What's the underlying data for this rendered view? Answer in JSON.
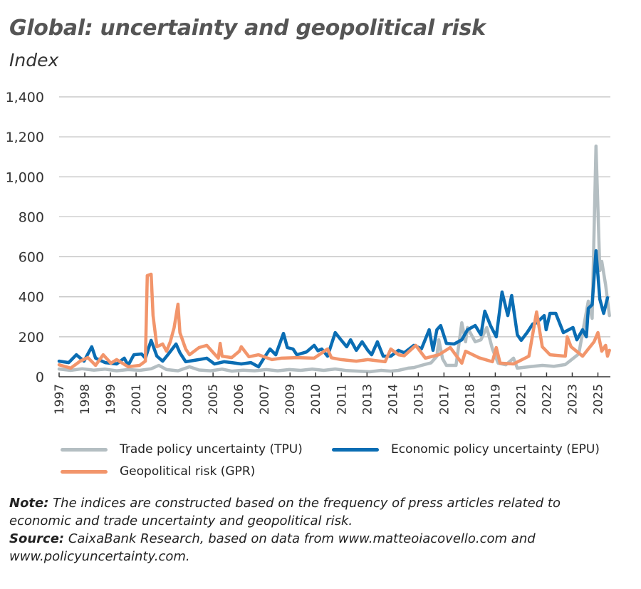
{
  "chart_data": {
    "type": "line",
    "title": "Global: uncertainty and geopolitical risk",
    "subtitle": "Index",
    "xlabel": "",
    "ylabel": "Index",
    "ylim": [
      0,
      1400
    ],
    "x_range": [
      1997.0,
      2025.75
    ],
    "y_ticks": [
      0,
      200,
      400,
      600,
      800,
      1000,
      1200,
      1400
    ],
    "y_tick_labels": [
      "0",
      "200",
      "400",
      "600",
      "800",
      "1,000",
      "1,200",
      "1,400"
    ],
    "x_tick_labels": [
      "1997",
      "1998",
      "1999",
      "2001",
      "2002",
      "2003",
      "2005",
      "2006",
      "2007",
      "2009",
      "2010",
      "2011",
      "2013",
      "2014",
      "2015",
      "2017",
      "2018",
      "2019",
      "2021",
      "2022",
      "2023",
      "2025"
    ],
    "x_tick_first": 1997.0,
    "x_tick_last": 2025.1,
    "grid": true,
    "legend_placement": "bottom",
    "series": [
      {
        "name": "Trade policy uncertainty (TPU)",
        "color": "#b4bec2",
        "points": [
          [
            1997.0,
            39
          ],
          [
            1997.6,
            32
          ],
          [
            1998.2,
            40
          ],
          [
            1998.8,
            33
          ],
          [
            1999.4,
            38
          ],
          [
            2000.0,
            30
          ],
          [
            2000.6,
            36
          ],
          [
            2001.2,
            32
          ],
          [
            2001.8,
            40
          ],
          [
            2002.2,
            57
          ],
          [
            2002.6,
            36
          ],
          [
            2003.2,
            30
          ],
          [
            2003.8,
            50
          ],
          [
            2004.3,
            34
          ],
          [
            2004.9,
            30
          ],
          [
            2005.5,
            38
          ],
          [
            2006.0,
            28
          ],
          [
            2006.6,
            33
          ],
          [
            2007.2,
            30
          ],
          [
            2007.8,
            36
          ],
          [
            2008.4,
            30
          ],
          [
            2009.0,
            36
          ],
          [
            2009.6,
            32
          ],
          [
            2010.2,
            38
          ],
          [
            2010.8,
            32
          ],
          [
            2011.4,
            39
          ],
          [
            2012.0,
            31
          ],
          [
            2012.6,
            28
          ],
          [
            2013.2,
            25
          ],
          [
            2013.8,
            32
          ],
          [
            2014.3,
            28
          ],
          [
            2014.7,
            32
          ],
          [
            2015.2,
            43
          ],
          [
            2015.5,
            46
          ],
          [
            2015.9,
            57
          ],
          [
            2016.4,
            70
          ],
          [
            2016.7,
            103
          ],
          [
            2016.8,
            185
          ],
          [
            2017.0,
            90
          ],
          [
            2017.2,
            57
          ],
          [
            2017.7,
            57
          ],
          [
            2018.0,
            270
          ],
          [
            2018.2,
            175
          ],
          [
            2018.3,
            246
          ],
          [
            2018.7,
            175
          ],
          [
            2019.0,
            185
          ],
          [
            2019.3,
            246
          ],
          [
            2019.6,
            139
          ],
          [
            2019.9,
            68
          ],
          [
            2020.3,
            60
          ],
          [
            2020.7,
            93
          ],
          [
            2020.9,
            43
          ],
          [
            2021.5,
            50
          ],
          [
            2022.2,
            57
          ],
          [
            2022.8,
            52
          ],
          [
            2023.4,
            61
          ],
          [
            2024.1,
            114
          ],
          [
            2024.6,
            378
          ],
          [
            2024.8,
            292
          ],
          [
            2025.0,
            1154
          ],
          [
            2025.2,
            531
          ],
          [
            2025.3,
            577
          ],
          [
            2025.5,
            460
          ],
          [
            2025.7,
            306
          ]
        ]
      },
      {
        "name": "Economic policy uncertainty (EPU)",
        "color": "#0a6db3",
        "points": [
          [
            1997.0,
            78
          ],
          [
            1997.5,
            71
          ],
          [
            1997.9,
            110
          ],
          [
            1998.3,
            78
          ],
          [
            1998.7,
            150
          ],
          [
            1998.9,
            93
          ],
          [
            1999.4,
            71
          ],
          [
            2000.0,
            64
          ],
          [
            2000.4,
            93
          ],
          [
            2000.6,
            57
          ],
          [
            2000.9,
            110
          ],
          [
            2001.3,
            114
          ],
          [
            2001.5,
            93
          ],
          [
            2001.8,
            182
          ],
          [
            2002.1,
            103
          ],
          [
            2002.4,
            78
          ],
          [
            2002.7,
            114
          ],
          [
            2003.1,
            164
          ],
          [
            2003.3,
            120
          ],
          [
            2003.6,
            75
          ],
          [
            2004.3,
            86
          ],
          [
            2004.7,
            93
          ],
          [
            2005.1,
            64
          ],
          [
            2005.6,
            75
          ],
          [
            2006.0,
            71
          ],
          [
            2006.5,
            64
          ],
          [
            2007.0,
            71
          ],
          [
            2007.4,
            50
          ],
          [
            2007.7,
            96
          ],
          [
            2008.0,
            139
          ],
          [
            2008.3,
            110
          ],
          [
            2008.7,
            217
          ],
          [
            2008.9,
            146
          ],
          [
            2009.2,
            139
          ],
          [
            2009.4,
            110
          ],
          [
            2009.9,
            124
          ],
          [
            2010.3,
            157
          ],
          [
            2010.5,
            130
          ],
          [
            2010.7,
            139
          ],
          [
            2011.0,
            103
          ],
          [
            2011.4,
            221
          ],
          [
            2011.7,
            185
          ],
          [
            2012.0,
            150
          ],
          [
            2012.2,
            185
          ],
          [
            2012.5,
            132
          ],
          [
            2012.8,
            175
          ],
          [
            2013.1,
            132
          ],
          [
            2013.3,
            110
          ],
          [
            2013.6,
            175
          ],
          [
            2013.9,
            103
          ],
          [
            2014.3,
            103
          ],
          [
            2014.7,
            132
          ],
          [
            2015.0,
            120
          ],
          [
            2015.5,
            157
          ],
          [
            2015.9,
            140
          ],
          [
            2016.3,
            235
          ],
          [
            2016.5,
            132
          ],
          [
            2016.7,
            235
          ],
          [
            2016.9,
            256
          ],
          [
            2017.2,
            167
          ],
          [
            2017.6,
            164
          ],
          [
            2018.0,
            185
          ],
          [
            2018.3,
            235
          ],
          [
            2018.7,
            256
          ],
          [
            2019.0,
            210
          ],
          [
            2019.2,
            328
          ],
          [
            2019.5,
            256
          ],
          [
            2019.8,
            200
          ],
          [
            2020.1,
            424
          ],
          [
            2020.4,
            306
          ],
          [
            2020.6,
            406
          ],
          [
            2020.9,
            210
          ],
          [
            2021.1,
            182
          ],
          [
            2021.4,
            220
          ],
          [
            2021.7,
            264
          ],
          [
            2021.9,
            270
          ],
          [
            2022.3,
            306
          ],
          [
            2022.4,
            235
          ],
          [
            2022.6,
            317
          ],
          [
            2022.9,
            317
          ],
          [
            2023.3,
            221
          ],
          [
            2023.8,
            246
          ],
          [
            2024.0,
            185
          ],
          [
            2024.3,
            235
          ],
          [
            2024.5,
            200
          ],
          [
            2024.6,
            342
          ],
          [
            2024.8,
            360
          ],
          [
            2025.0,
            630
          ],
          [
            2025.2,
            388
          ],
          [
            2025.4,
            317
          ],
          [
            2025.6,
            395
          ]
        ]
      },
      {
        "name": "Geopolitical risk (GPR)",
        "color": "#f2956b",
        "points": [
          [
            1997.0,
            60
          ],
          [
            1997.6,
            43
          ],
          [
            1998.1,
            78
          ],
          [
            1998.5,
            96
          ],
          [
            1998.9,
            57
          ],
          [
            1999.3,
            110
          ],
          [
            1999.7,
            68
          ],
          [
            2000.0,
            86
          ],
          [
            2000.6,
            50
          ],
          [
            2001.2,
            57
          ],
          [
            2001.5,
            78
          ],
          [
            2001.6,
            506
          ],
          [
            2001.8,
            513
          ],
          [
            2001.9,
            306
          ],
          [
            2002.1,
            150
          ],
          [
            2002.4,
            164
          ],
          [
            2002.6,
            128
          ],
          [
            2002.8,
            175
          ],
          [
            2003.0,
            246
          ],
          [
            2003.2,
            363
          ],
          [
            2003.3,
            221
          ],
          [
            2003.6,
            139
          ],
          [
            2003.8,
            110
          ],
          [
            2004.3,
            146
          ],
          [
            2004.7,
            157
          ],
          [
            2005.1,
            114
          ],
          [
            2005.3,
            93
          ],
          [
            2005.4,
            167
          ],
          [
            2005.5,
            103
          ],
          [
            2006.0,
            96
          ],
          [
            2006.4,
            128
          ],
          [
            2006.5,
            150
          ],
          [
            2006.9,
            100
          ],
          [
            2007.4,
            110
          ],
          [
            2008.1,
            86
          ],
          [
            2008.6,
            93
          ],
          [
            2009.4,
            96
          ],
          [
            2010.3,
            93
          ],
          [
            2011.0,
            139
          ],
          [
            2011.2,
            95
          ],
          [
            2011.7,
            86
          ],
          [
            2012.5,
            78
          ],
          [
            2013.1,
            86
          ],
          [
            2014.0,
            75
          ],
          [
            2014.3,
            139
          ],
          [
            2014.7,
            110
          ],
          [
            2015.0,
            105
          ],
          [
            2015.6,
            157
          ],
          [
            2016.1,
            93
          ],
          [
            2016.8,
            110
          ],
          [
            2017.4,
            146
          ],
          [
            2018.0,
            68
          ],
          [
            2018.2,
            128
          ],
          [
            2018.9,
            95
          ],
          [
            2019.6,
            75
          ],
          [
            2019.8,
            146
          ],
          [
            2020.0,
            68
          ],
          [
            2020.7,
            64
          ],
          [
            2021.5,
            103
          ],
          [
            2021.9,
            324
          ],
          [
            2022.2,
            150
          ],
          [
            2022.6,
            110
          ],
          [
            2023.4,
            103
          ],
          [
            2023.5,
            200
          ],
          [
            2023.7,
            150
          ],
          [
            2024.3,
            103
          ],
          [
            2024.6,
            139
          ],
          [
            2024.9,
            175
          ],
          [
            2025.1,
            221
          ],
          [
            2025.3,
            128
          ],
          [
            2025.5,
            157
          ],
          [
            2025.6,
            103
          ],
          [
            2025.7,
            132
          ]
        ]
      }
    ]
  },
  "notes": {
    "note_label": "Note:",
    "note_text": " The indices are constructed based on the frequency of press articles related to economic and trade uncertainty and geopolitical risk.",
    "source_label": "Source:",
    "source_text": " CaixaBank Research, based on data from www.matteoiacovello.com and www.policyuncertainty.com."
  }
}
